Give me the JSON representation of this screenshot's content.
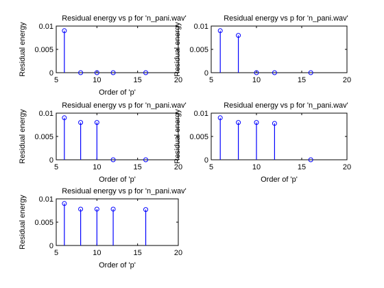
{
  "colors": {
    "stem": "#0000ff",
    "axes": "#000000",
    "background": "#ffffff"
  },
  "chart_data": [
    {
      "type": "stem",
      "title": "Residual energy vs p for 'n_pani.wav'",
      "xlabel": "Order of 'p'",
      "ylabel": "Residual energy",
      "xlim": [
        5,
        20
      ],
      "ylim": [
        0,
        0.01
      ],
      "xticks": [
        5,
        10,
        15,
        20
      ],
      "yticks": [
        0,
        0.005,
        0.01
      ],
      "xtick_labels": [
        "5",
        "10",
        "15",
        "20"
      ],
      "ytick_labels": [
        "0",
        "0.005",
        "0.01"
      ],
      "x": [
        6,
        8,
        10,
        12,
        16
      ],
      "y": [
        0.009,
        0,
        0,
        0,
        0
      ],
      "grid": false
    },
    {
      "type": "stem",
      "title": "Residual energy vs p for 'n_pani.wav'",
      "xlabel": "",
      "ylabel": "Residual energy",
      "xlim": [
        5,
        20
      ],
      "ylim": [
        0,
        0.01
      ],
      "xticks": [
        5,
        10,
        15,
        20
      ],
      "yticks": [
        0,
        0.005,
        0.01
      ],
      "xtick_labels": [
        "5",
        "10",
        "15",
        "20"
      ],
      "ytick_labels": [
        "0",
        "0.005",
        "0.01"
      ],
      "x": [
        6,
        8,
        10,
        12,
        16
      ],
      "y": [
        0.009,
        0.008,
        0,
        0,
        0
      ],
      "grid": false
    },
    {
      "type": "stem",
      "title": "Residual energy vs p for 'n_pani.wav'",
      "xlabel": "Order of 'p'",
      "ylabel": "Residual energy",
      "xlim": [
        5,
        20
      ],
      "ylim": [
        0,
        0.01
      ],
      "xticks": [
        5,
        10,
        15,
        20
      ],
      "yticks": [
        0,
        0.005,
        0.01
      ],
      "xtick_labels": [
        "5",
        "10",
        "15",
        "20"
      ],
      "ytick_labels": [
        "0",
        "0.005",
        "0.01"
      ],
      "x": [
        6,
        8,
        10,
        12,
        16
      ],
      "y": [
        0.009,
        0.008,
        0.008,
        0,
        0
      ],
      "grid": false
    },
    {
      "type": "stem",
      "title": "Residual energy vs p for 'n_pani.wav'",
      "xlabel": "Order of 'p'",
      "ylabel": "Residual energy",
      "xlim": [
        5,
        20
      ],
      "ylim": [
        0,
        0.01
      ],
      "xticks": [
        5,
        10,
        15,
        20
      ],
      "yticks": [
        0,
        0.005,
        0.01
      ],
      "xtick_labels": [
        "5",
        "10",
        "15",
        "20"
      ],
      "ytick_labels": [
        "0",
        "0.005",
        "0.01"
      ],
      "x": [
        6,
        8,
        10,
        12,
        16
      ],
      "y": [
        0.009,
        0.008,
        0.008,
        0.0078,
        0
      ],
      "grid": false
    },
    {
      "type": "stem",
      "title": "Residual energy vs p for 'n_pani.wav'",
      "xlabel": "Order of 'p'",
      "ylabel": "Residual energy",
      "xlim": [
        5,
        20
      ],
      "ylim": [
        0,
        0.01
      ],
      "xticks": [
        5,
        10,
        15,
        20
      ],
      "yticks": [
        0,
        0.005,
        0.01
      ],
      "xtick_labels": [
        "5",
        "10",
        "15",
        "20"
      ],
      "ytick_labels": [
        "0",
        "0.005",
        "0.01"
      ],
      "x": [
        6,
        8,
        10,
        12,
        16
      ],
      "y": [
        0.009,
        0.0078,
        0.0078,
        0.0078,
        0.0077
      ],
      "grid": false
    }
  ]
}
